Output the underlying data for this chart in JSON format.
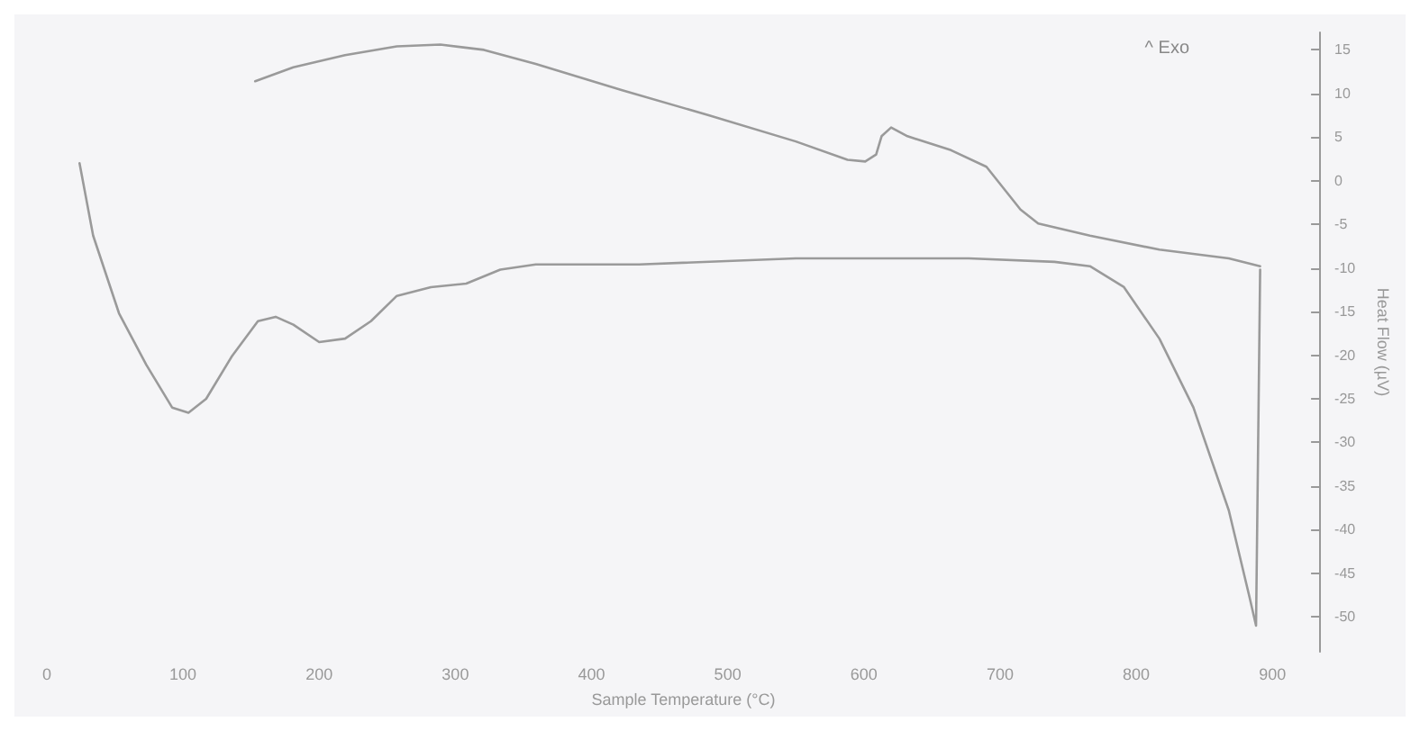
{
  "chart_data": {
    "type": "line",
    "xlabel": "Sample Temperature (°C)",
    "ylabel": "Heat Flow (µV)",
    "annotations": [
      "^ Exo"
    ],
    "xlim": [
      0,
      935
    ],
    "xticks": [
      0,
      100,
      200,
      300,
      400,
      500,
      600,
      700,
      800,
      900
    ],
    "ylim": [
      -54,
      17
    ],
    "yticks": [
      15,
      10,
      5,
      0,
      -5,
      -10,
      -15,
      -20,
      -25,
      -30,
      -35,
      -40,
      -45,
      -50
    ],
    "grid": false,
    "marker": "none",
    "line_style": "solid",
    "series": [
      {
        "color": "#9a9a9a",
        "x": [
          24,
          34,
          53,
          73,
          92,
          104,
          117,
          136,
          155,
          168,
          181,
          200,
          219,
          238,
          257,
          282,
          308,
          333,
          359,
          435,
          550,
          677,
          740,
          766,
          791,
          817,
          842,
          868,
          883,
          888,
          891
        ],
        "values": [
          2.0,
          -6.3,
          -15.2,
          -21.1,
          -26.0,
          -26.6,
          -25.0,
          -20.1,
          -16.1,
          -15.6,
          -16.5,
          -18.5,
          -18.1,
          -16.1,
          -13.2,
          -12.2,
          -11.8,
          -10.2,
          -9.6,
          -9.6,
          -8.9,
          -8.9,
          -9.3,
          -9.8,
          -12.2,
          -18.1,
          -26.0,
          -37.8,
          -47.6,
          -51.0,
          -10.2
        ]
      },
      {
        "color": "#9a9a9a",
        "x": [
          153,
          181,
          219,
          257,
          289,
          321,
          359,
          422,
          486,
          550,
          588,
          601,
          609,
          613,
          620,
          632,
          664,
          690,
          715,
          728,
          766,
          817,
          868,
          891
        ],
        "values": [
          11.4,
          13.0,
          14.4,
          15.4,
          15.6,
          15.0,
          13.4,
          10.4,
          7.5,
          4.5,
          2.4,
          2.2,
          3.0,
          5.1,
          6.1,
          5.1,
          3.5,
          1.6,
          -3.3,
          -4.9,
          -6.3,
          -7.9,
          -8.9,
          -9.8
        ]
      }
    ]
  }
}
